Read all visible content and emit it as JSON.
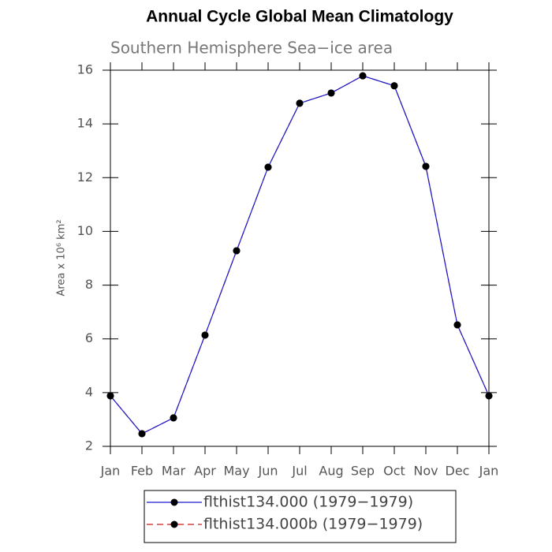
{
  "chart_data": {
    "type": "line",
    "title": "Annual Cycle Global Mean Climatology",
    "subtitle": "Southern Hemisphere Sea−ice area",
    "y_label": "Area x 10⁶ km²",
    "categories": [
      "Jan",
      "Feb",
      "Mar",
      "Apr",
      "May",
      "Jun",
      "Jul",
      "Aug",
      "Sep",
      "Oct",
      "Nov",
      "Dec",
      "Jan"
    ],
    "series": [
      {
        "name": "flthist134.000 (1979−1979)",
        "color": "#1a1acc",
        "dash": false,
        "values": [
          3.88,
          2.47,
          3.06,
          6.14,
          9.28,
          12.39,
          14.77,
          15.15,
          15.79,
          15.42,
          12.42,
          6.52,
          3.88
        ]
      },
      {
        "name": "flthist134.000b (1979−1979)",
        "color": "#cc1a1a",
        "dash": true,
        "values": [
          3.88,
          2.47,
          3.06,
          6.14,
          9.28,
          12.39,
          14.77,
          15.15,
          15.79,
          15.42,
          12.42,
          6.52,
          3.88
        ]
      }
    ],
    "marker_color": "#000000",
    "ylim": [
      2,
      16
    ],
    "yticks": [
      2,
      4,
      6,
      8,
      10,
      12,
      14,
      16
    ],
    "grid": false
  }
}
